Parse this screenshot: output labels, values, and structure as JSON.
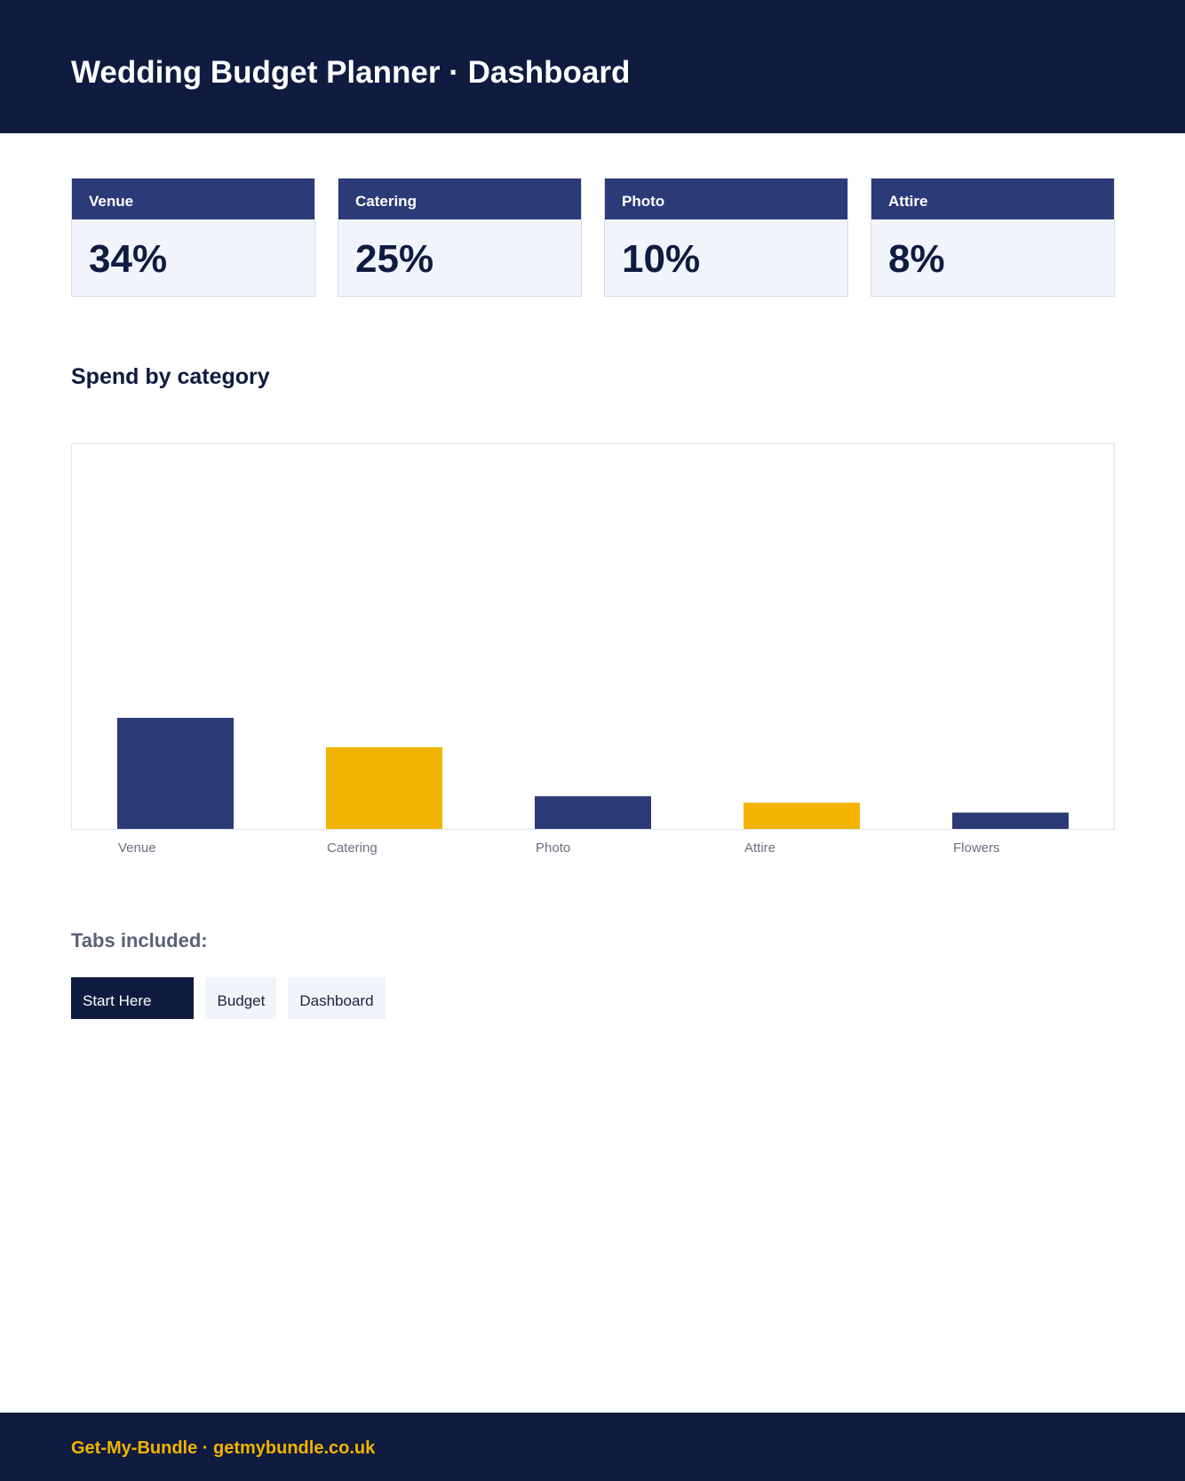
{
  "header": {
    "title": "Wedding Budget Planner · Dashboard"
  },
  "kpis": [
    {
      "label": "Venue",
      "value": "34%"
    },
    {
      "label": "Catering",
      "value": "25%"
    },
    {
      "label": "Photo",
      "value": "10%"
    },
    {
      "label": "Attire",
      "value": "8%"
    }
  ],
  "section": {
    "title": "Spend by category"
  },
  "chart_data": {
    "type": "bar",
    "categories": [
      "Venue",
      "Catering",
      "Photo",
      "Attire",
      "Flowers"
    ],
    "values": [
      34,
      25,
      10,
      8,
      5
    ],
    "ylim": [
      0,
      118
    ],
    "bar_colors": [
      "#2c3a78",
      "#f2b400",
      "#2c3a78",
      "#f2b400",
      "#2c3a78"
    ],
    "grid": false,
    "title": "",
    "xlabel": "",
    "ylabel": ""
  },
  "tabs": {
    "title": "Tabs included:",
    "items": [
      {
        "label": "Start Here",
        "active": true
      },
      {
        "label": "Budget",
        "active": false
      },
      {
        "label": "Dashboard",
        "active": false
      }
    ]
  },
  "footer": {
    "text": "Get-My-Bundle · getmybundle.co.uk"
  },
  "colors": {
    "navy": "#0f1b3f",
    "indigo": "#2c3a78",
    "gold": "#f2b400",
    "card_bg": "#f2f4fb"
  }
}
